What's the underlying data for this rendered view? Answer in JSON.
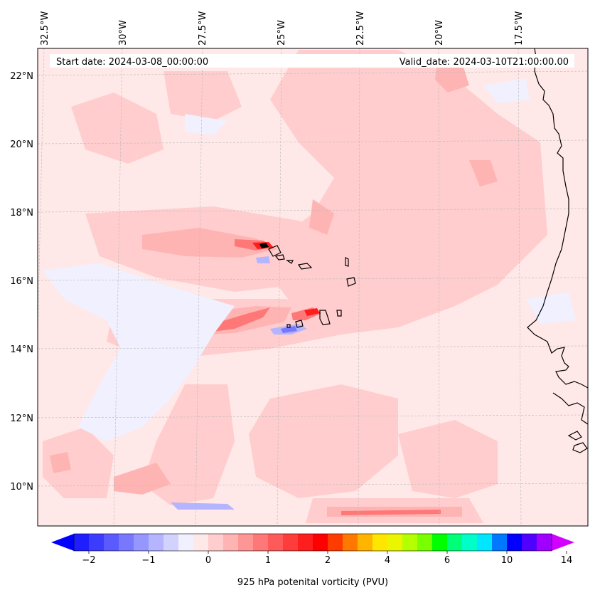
{
  "header": {
    "start_label": "Start date: 2024-03-08_00:00:00",
    "valid_label": "Valid_date: 2024-03-10T21:00:00.00"
  },
  "lon_labels": [
    "32.5°W",
    "30°W",
    "27.5°W",
    "25°W",
    "22.5°W",
    "20°W",
    "17.5°W"
  ],
  "lat_labels": [
    "22°N",
    "20°N",
    "18°N",
    "16°N",
    "14°N",
    "12°N",
    "10°N"
  ],
  "colorbar": {
    "title": "925 hPa potenital vorticity (PVU)",
    "tick_labels": [
      "−2",
      "−1",
      "0",
      "1",
      "2",
      "4",
      "6",
      "10",
      "14"
    ],
    "colors": [
      "#1e1eff",
      "#3c3cff",
      "#5a5aff",
      "#7878ff",
      "#9696ff",
      "#b4b4ff",
      "#d2d2ff",
      "#f0f0ff",
      "#ffe8e8",
      "#ffcdcd",
      "#ffb4b4",
      "#ff9696",
      "#ff7878",
      "#ff5a5a",
      "#ff3c3c",
      "#ff1e1e",
      "#ff0000",
      "#ff3c00",
      "#ff7800",
      "#ffb400",
      "#ffe600",
      "#ebf500",
      "#b4ff00",
      "#78ff00",
      "#00ff00",
      "#00ff78",
      "#00ffc8",
      "#00e6ff",
      "#0078ff",
      "#0000ff",
      "#5000ff",
      "#a000ff"
    ],
    "under_color": "#0000ff",
    "over_color": "#d200ff"
  },
  "map": {
    "background_color": "#ffe8e8",
    "field": "925 hPa potential vorticity (PVU)",
    "coast_color": "#000000"
  }
}
